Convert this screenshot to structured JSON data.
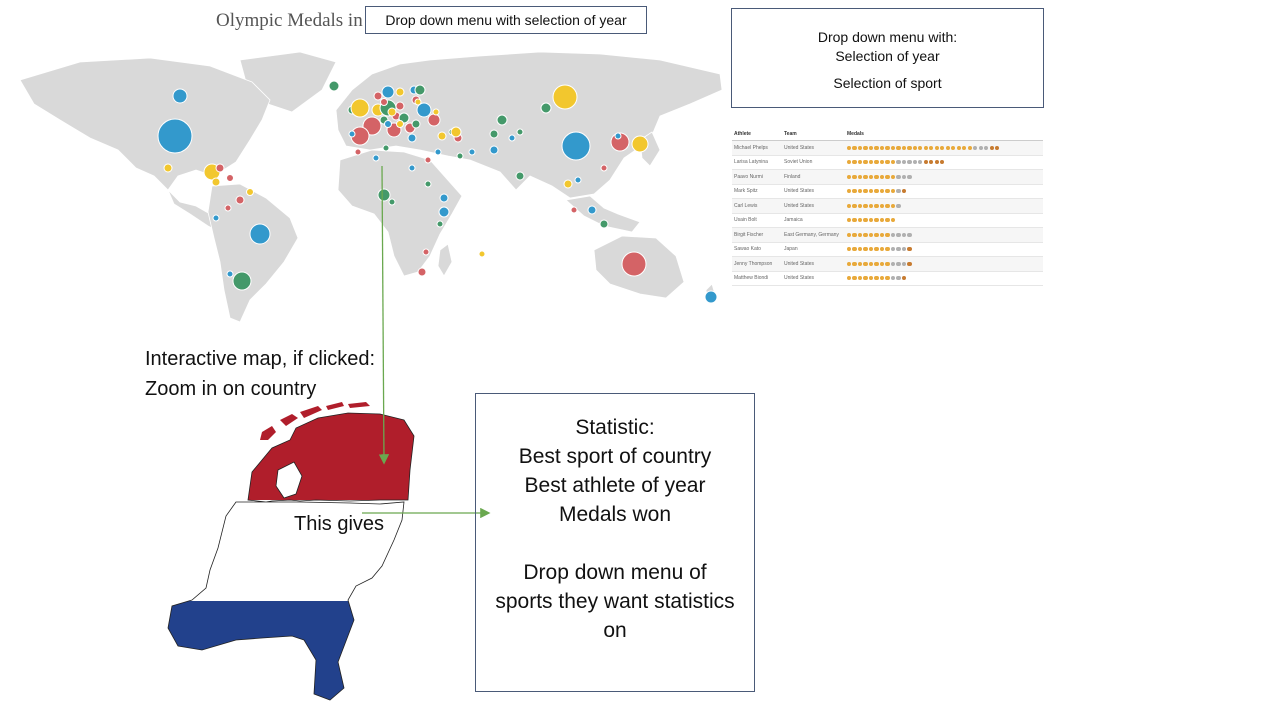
{
  "map": {
    "title": "Olympic Medals in",
    "year_dropdown_label": "Drop down menu with selection of year",
    "colors": {
      "land": "#d9d9d9",
      "blue": "#3399cc",
      "green": "#44996a",
      "red": "#d46366",
      "yellow": "#f2c72e"
    }
  },
  "dropdown_box": {
    "heading": "Drop down menu with:",
    "items": [
      "Selection of year",
      "Selection of sport"
    ]
  },
  "athlete_table": {
    "headers": [
      "Athlete",
      "Team",
      "Medals"
    ],
    "medal_colors": {
      "gold": "#e8a93a",
      "silver": "#b0b0b0",
      "bronze": "#c77b30"
    },
    "rows": [
      {
        "athlete": "Michael Phelps",
        "team": "United States",
        "gold": 23,
        "silver": 3,
        "bronze": 2
      },
      {
        "athlete": "Larisa Latynina",
        "team": "Soviet Union",
        "gold": 9,
        "silver": 5,
        "bronze": 4
      },
      {
        "athlete": "Paavo Nurmi",
        "team": "Finland",
        "gold": 9,
        "silver": 3,
        "bronze": 0
      },
      {
        "athlete": "Mark Spitz",
        "team": "United States",
        "gold": 9,
        "silver": 1,
        "bronze": 1
      },
      {
        "athlete": "Carl Lewis",
        "team": "United States",
        "gold": 9,
        "silver": 1,
        "bronze": 0
      },
      {
        "athlete": "Usain Bolt",
        "team": "Jamaica",
        "gold": 9,
        "silver": 0,
        "bronze": 0
      },
      {
        "athlete": "Birgit Fischer",
        "team": "East Germany, Germany",
        "gold": 8,
        "silver": 4,
        "bronze": 0
      },
      {
        "athlete": "Sawao Kato",
        "team": "Japan",
        "gold": 8,
        "silver": 3,
        "bronze": 1
      },
      {
        "athlete": "Jenny Thompson",
        "team": "United States",
        "gold": 8,
        "silver": 3,
        "bronze": 1
      },
      {
        "athlete": "Matthew Biondi",
        "team": "United States",
        "gold": 8,
        "silver": 2,
        "bronze": 1
      }
    ]
  },
  "map_note": {
    "line1": "Interactive map, if clicked:",
    "line2": "Zoom in on country"
  },
  "connector": {
    "label": "This gives"
  },
  "netherlands": {
    "colors": {
      "top": "#b01e2b",
      "middle": "#ffffff",
      "bottom": "#22418c",
      "outline": "#222222"
    }
  },
  "statistic_box": {
    "heading": "Statistic:",
    "lines": [
      "Best sport of country",
      "Best athlete of year",
      "Medals won"
    ],
    "dropdown_lines": [
      "Drop down menu of",
      "sports they want statistics",
      "on"
    ]
  }
}
